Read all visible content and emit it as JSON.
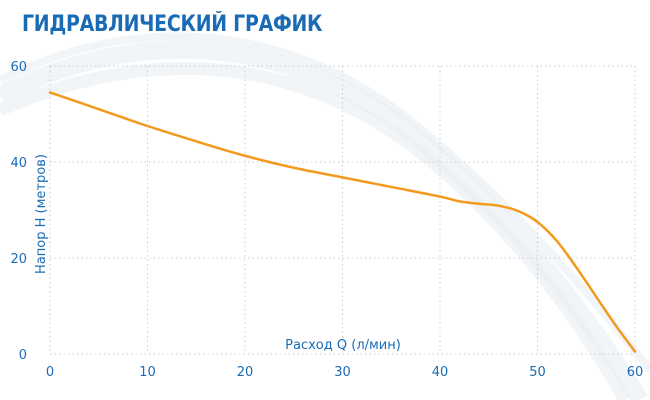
{
  "page": {
    "title": "ГИДРАВЛИЧЕСКИЙ ГРАФИК"
  },
  "colors": {
    "title": "#1a6bb5",
    "axis_text": "#1a6bb5",
    "curve": "#f39a1e",
    "grid": "#c9ced6",
    "background_swoosh": "#e7ecf3"
  },
  "chart_data": {
    "type": "line",
    "title": "ГИДРАВЛИЧЕСКИЙ ГРАФИК",
    "xlabel": "Расход Q (л/мин)",
    "ylabel": "Напор H (метров)",
    "xlim": [
      0,
      60
    ],
    "ylim": [
      0,
      60
    ],
    "x_ticks": [
      "0",
      "10",
      "20",
      "30",
      "40",
      "50",
      "60"
    ],
    "y_ticks": [
      "0",
      "20",
      "40",
      "60"
    ],
    "grid": true,
    "grid_style": "dotted",
    "legend": "none",
    "series": [
      {
        "x": [
          0,
          5,
          10,
          15,
          20,
          25,
          30,
          35,
          40,
          42,
          44,
          46,
          48,
          50,
          52,
          54,
          56,
          58,
          60
        ],
        "y": [
          54.5,
          51,
          47.5,
          44.3,
          41.3,
          38.8,
          36.8,
          34.8,
          32.8,
          31.8,
          31.3,
          30.9,
          29.8,
          27.5,
          23.5,
          18,
          12,
          6,
          0.5
        ]
      }
    ]
  }
}
